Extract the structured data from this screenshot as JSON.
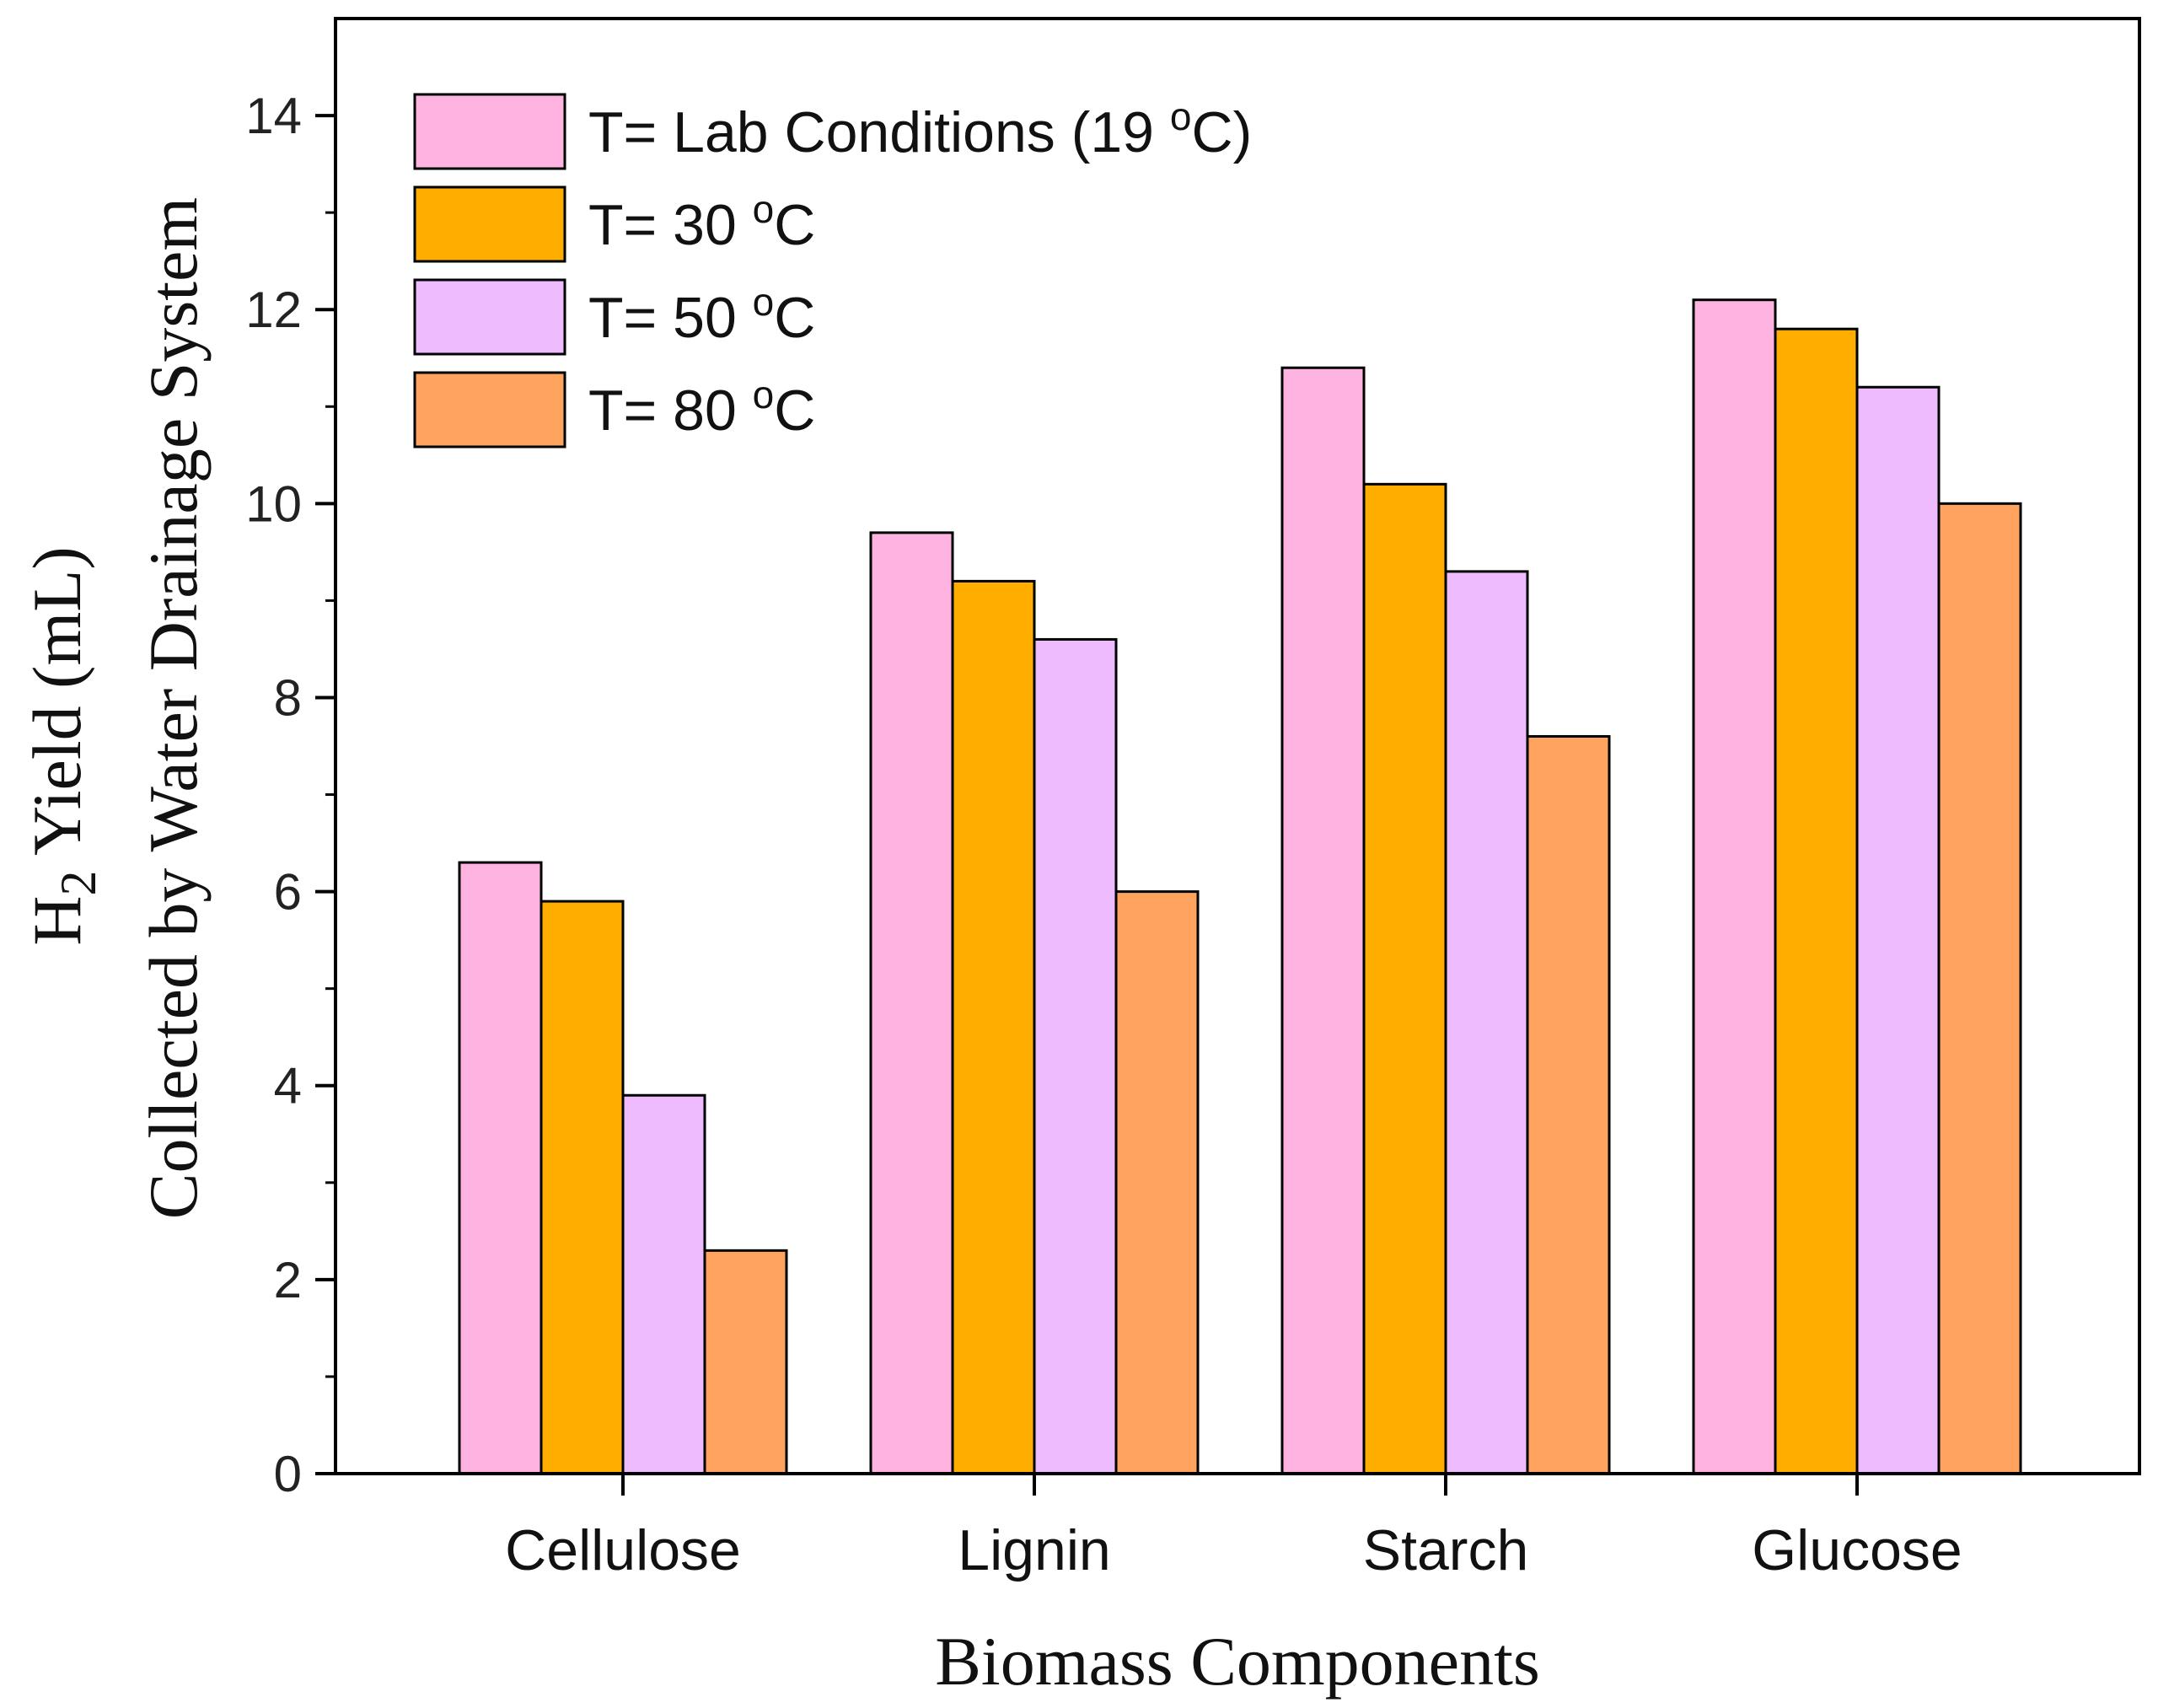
{
  "chart_data": {
    "type": "bar",
    "title": "",
    "xlabel": "Biomass Components",
    "ylabel": {
      "line1_prefix": "H",
      "line1_subscript": "2",
      "line1_suffix": " Yield (mL)",
      "line2": "Collected by Water Drainage System"
    },
    "categories": [
      "Cellulose",
      "Lignin",
      "Starch",
      "Glucose"
    ],
    "ylim": [
      0,
      15
    ],
    "yticks": [
      0,
      2,
      4,
      6,
      8,
      10,
      12,
      14
    ],
    "grid": false,
    "legend_position": "top-left",
    "series": [
      {
        "name": "T= Lab Conditions (19 ",
        "sup": "o",
        "unit": "C)",
        "color": "#FFB3E1",
        "values": [
          6.3,
          9.7,
          11.4,
          12.1
        ]
      },
      {
        "name": "T= 30 ",
        "sup": "o",
        "unit": "C",
        "color": "#FFAE00",
        "values": [
          5.9,
          9.2,
          10.2,
          11.8
        ]
      },
      {
        "name": "T= 50 ",
        "sup": "o",
        "unit": "C",
        "color": "#EEBBFF",
        "values": [
          3.9,
          8.6,
          9.3,
          11.2
        ]
      },
      {
        "name": "T= 80 ",
        "sup": "o",
        "unit": "C",
        "color": "#FFA45E",
        "values": [
          2.3,
          6.0,
          7.6,
          10.0
        ]
      }
    ]
  }
}
